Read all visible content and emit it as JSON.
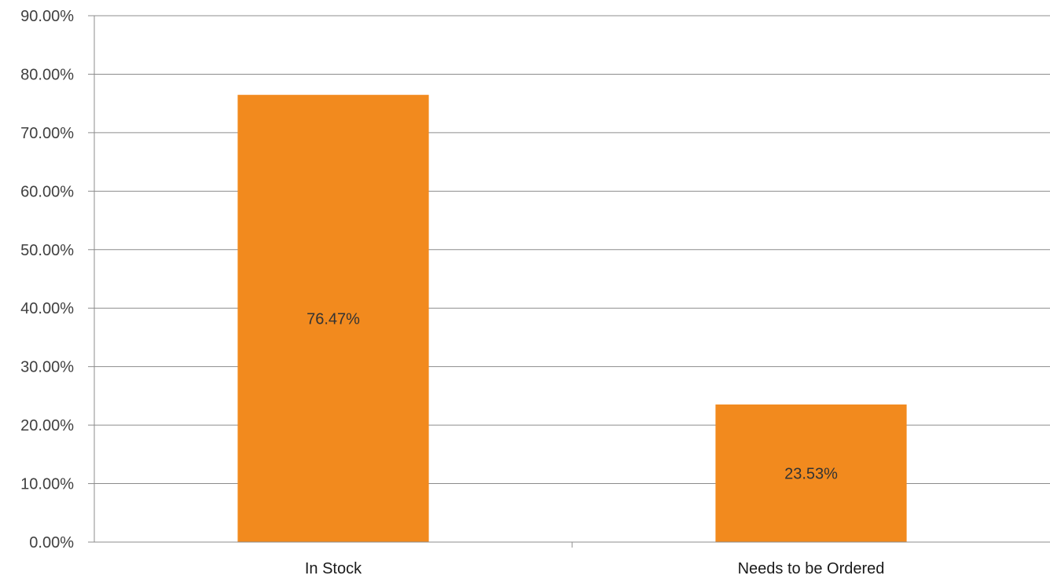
{
  "chart_data": {
    "type": "bar",
    "title": "",
    "xlabel": "",
    "ylabel": "",
    "categories": [
      "In Stock",
      "Needs to be Ordered"
    ],
    "values": [
      76.47,
      23.53
    ],
    "data_labels": [
      "76.47%",
      "23.53%"
    ],
    "ylim": [
      0,
      90
    ],
    "y_ticks": [
      0,
      10,
      20,
      30,
      40,
      50,
      60,
      70,
      80,
      90
    ],
    "y_tick_labels": [
      "0.00%",
      "10.00%",
      "20.00%",
      "30.00%",
      "40.00%",
      "50.00%",
      "60.00%",
      "70.00%",
      "80.00%",
      "90.00%"
    ],
    "grid": true,
    "legend": "none",
    "bar_color": "#F28A1E"
  }
}
